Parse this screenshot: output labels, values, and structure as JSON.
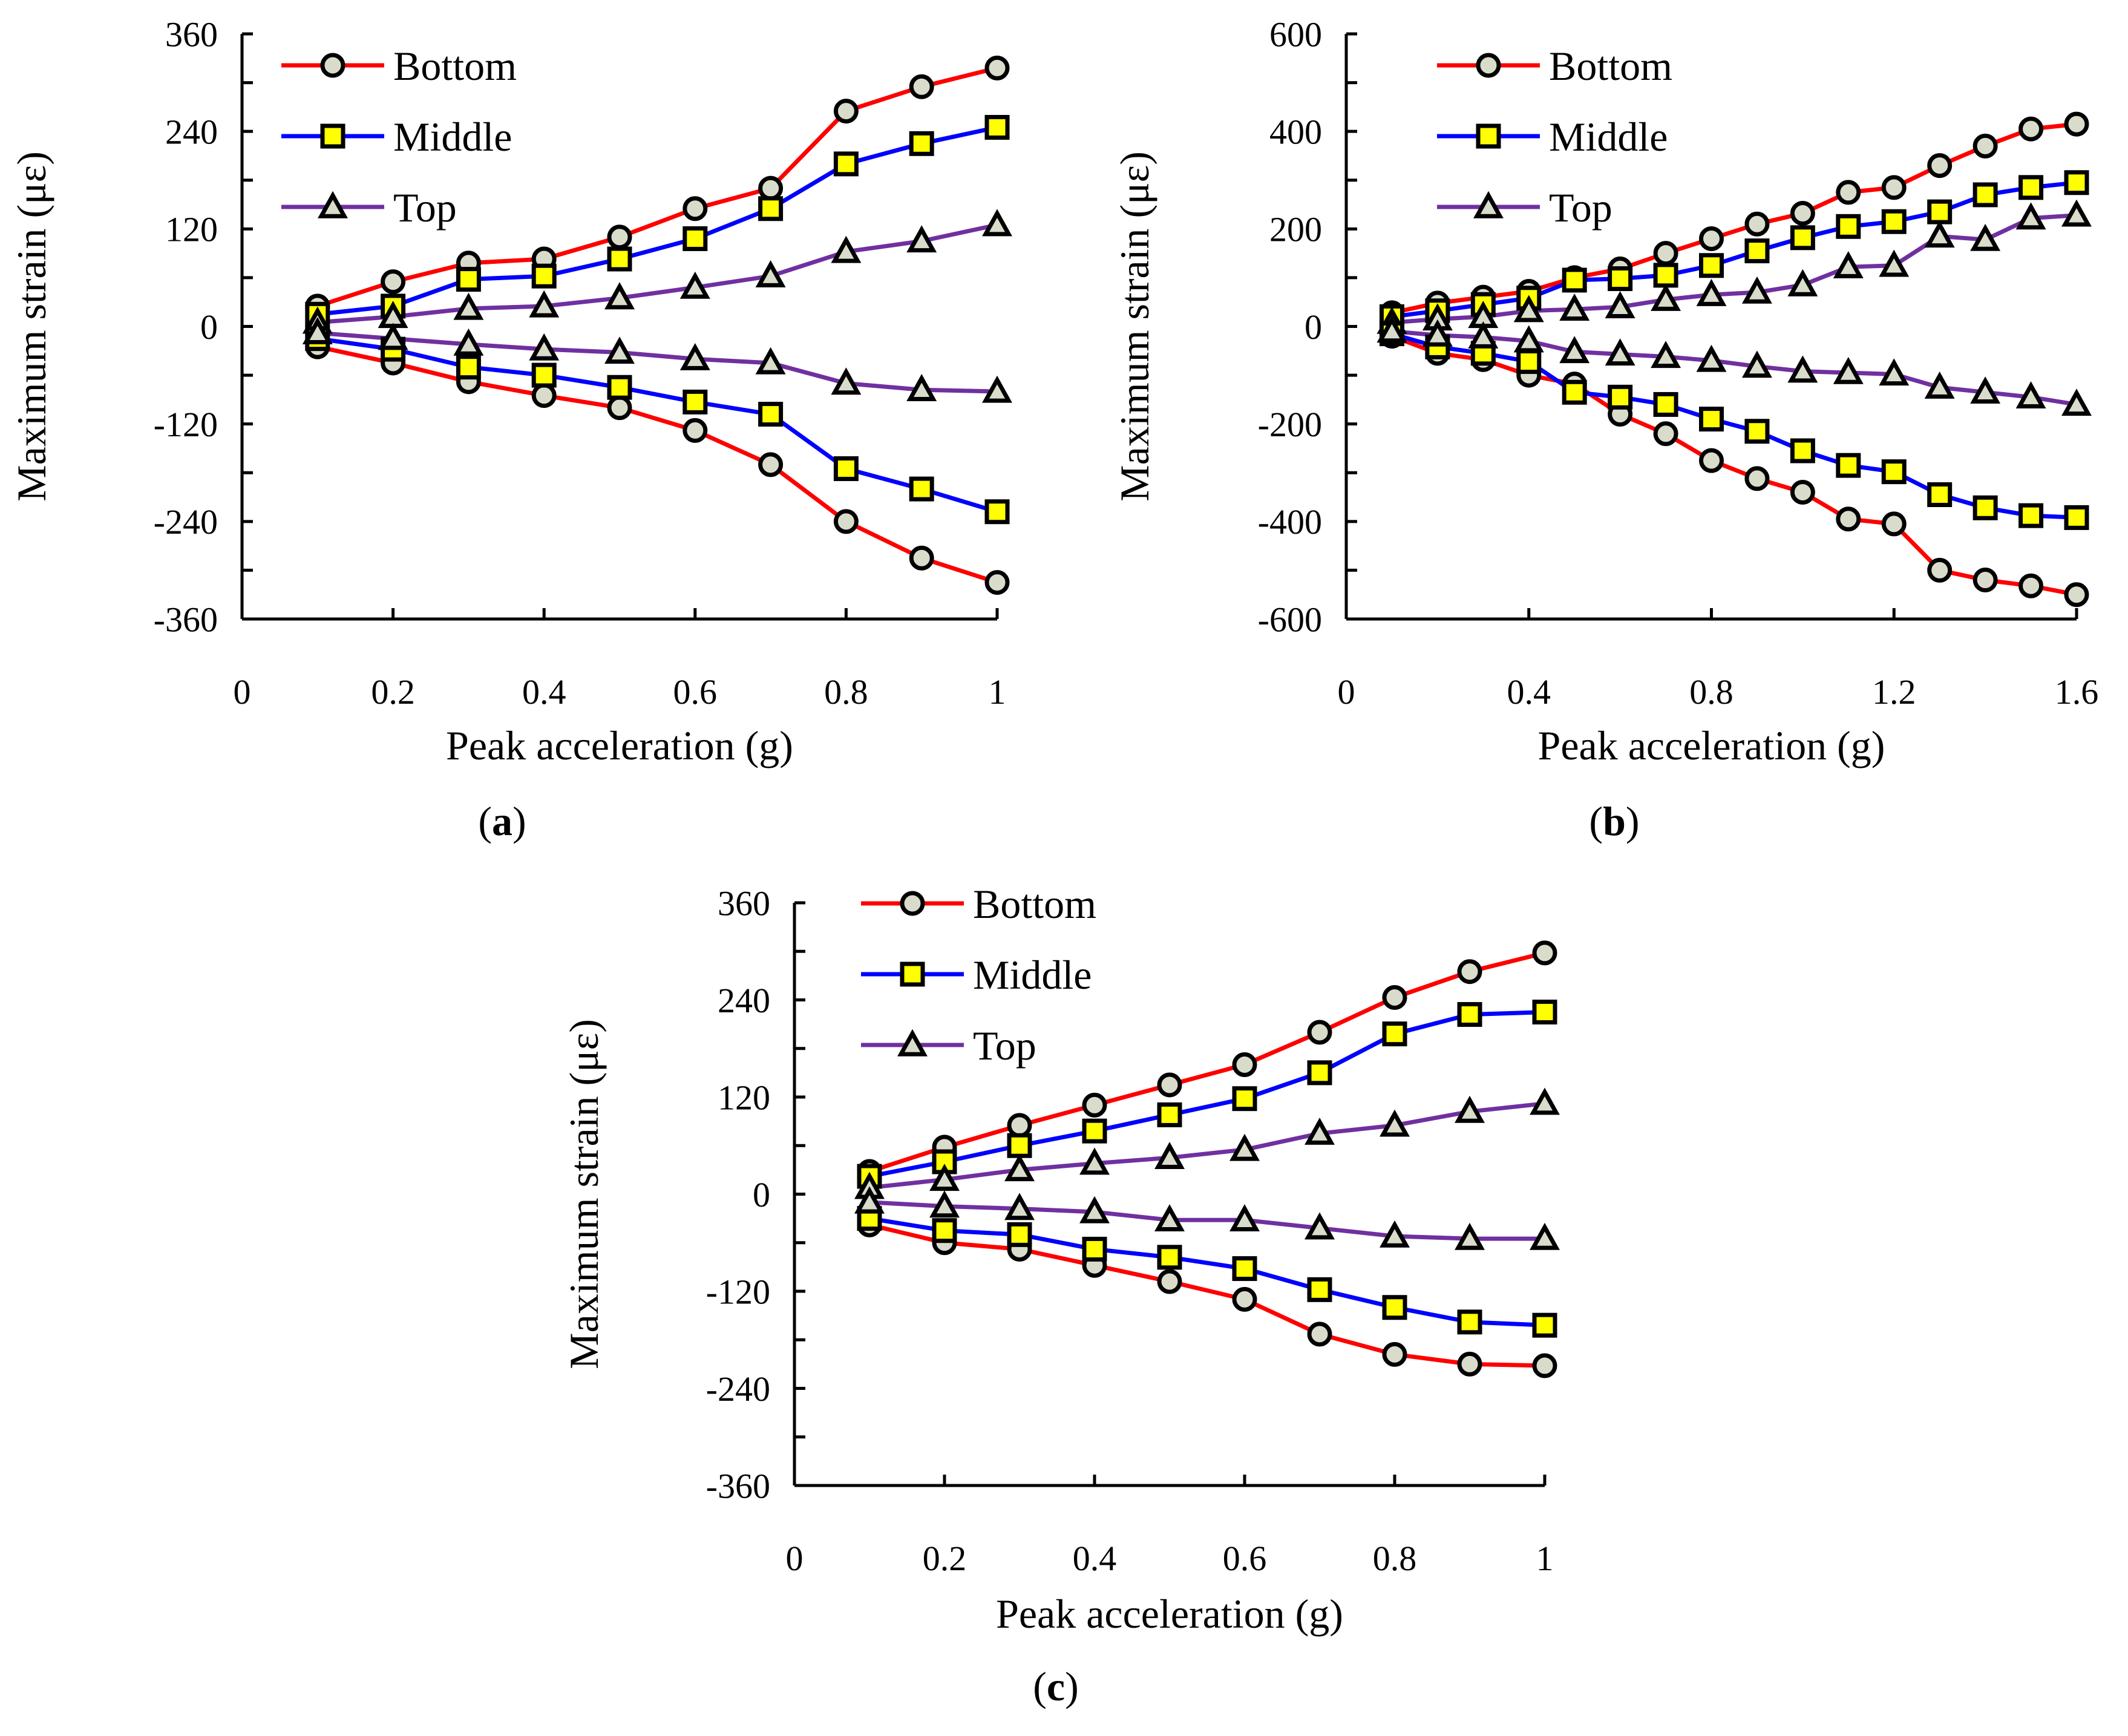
{
  "chart_data": [
    {
      "id": "a",
      "type": "line",
      "caption_letter": "a",
      "xlabel": "Peak acceleration (g)",
      "ylabel": "Maximum strain (με)",
      "xlim": [
        0,
        1
      ],
      "ylim": [
        -360,
        360
      ],
      "xticks": [
        0,
        0.2,
        0.4,
        0.6,
        0.8,
        1
      ],
      "xtick_labels": [
        "0",
        "0.2",
        "0.4",
        "0.6",
        "0.8",
        "1"
      ],
      "yticks": [
        -360,
        -240,
        -120,
        0,
        120,
        240,
        360
      ],
      "ytick_labels": [
        "-360",
        "-240",
        "-120",
        "0",
        "120",
        "240",
        "360"
      ],
      "legend": [
        "Bottom",
        "Middle",
        "Top"
      ],
      "x": [
        0.1,
        0.2,
        0.3,
        0.4,
        0.5,
        0.6,
        0.7,
        0.8,
        0.9,
        1.0
      ],
      "series": [
        {
          "name": "Bottom",
          "branch": "positive",
          "values": [
            25,
            55,
            78,
            83,
            110,
            145,
            170,
            265,
            295,
            318
          ]
        },
        {
          "name": "Middle",
          "branch": "positive",
          "values": [
            15,
            25,
            58,
            62,
            83,
            108,
            145,
            200,
            225,
            245
          ]
        },
        {
          "name": "Top",
          "branch": "positive",
          "values": [
            5,
            12,
            22,
            25,
            35,
            48,
            62,
            92,
            105,
            125
          ]
        },
        {
          "name": "Bottom",
          "branch": "negative",
          "values": [
            -25,
            -45,
            -68,
            -85,
            -100,
            -128,
            -170,
            -240,
            -285,
            -315
          ]
        },
        {
          "name": "Middle",
          "branch": "negative",
          "values": [
            -15,
            -28,
            -50,
            -60,
            -75,
            -93,
            -108,
            -175,
            -200,
            -228
          ]
        },
        {
          "name": "Top",
          "branch": "negative",
          "values": [
            -8,
            -15,
            -22,
            -28,
            -32,
            -40,
            -45,
            -70,
            -78,
            -80
          ]
        }
      ]
    },
    {
      "id": "b",
      "type": "line",
      "caption_letter": "b",
      "xlabel": "Peak acceleration (g)",
      "ylabel": "Maximum strain (με)",
      "xlim": [
        0,
        1.6
      ],
      "ylim": [
        -600,
        600
      ],
      "xticks": [
        0,
        0.4,
        0.8,
        1.2,
        1.6
      ],
      "xtick_labels": [
        "0",
        "0.4",
        "0.8",
        "1.2",
        "1.6"
      ],
      "yticks": [
        -600,
        -400,
        -200,
        0,
        200,
        400,
        600
      ],
      "ytick_labels": [
        "-600",
        "-400",
        "-200",
        "0",
        "200",
        "400",
        "600"
      ],
      "legend": [
        "Bottom",
        "Middle",
        "Top"
      ],
      "x": [
        0.1,
        0.2,
        0.3,
        0.4,
        0.5,
        0.6,
        0.7,
        0.8,
        0.9,
        1.0,
        1.1,
        1.2,
        1.3,
        1.4,
        1.5,
        1.6
      ],
      "series": [
        {
          "name": "Bottom",
          "branch": "positive",
          "values": [
            28,
            48,
            60,
            72,
            100,
            118,
            150,
            180,
            210,
            232,
            275,
            285,
            330,
            370,
            405,
            415
          ]
        },
        {
          "name": "Middle",
          "branch": "positive",
          "values": [
            20,
            32,
            45,
            58,
            95,
            98,
            105,
            125,
            155,
            182,
            205,
            215,
            235,
            270,
            285,
            295
          ]
        },
        {
          "name": "Top",
          "branch": "positive",
          "values": [
            8,
            15,
            20,
            32,
            35,
            40,
            55,
            65,
            70,
            85,
            122,
            125,
            185,
            178,
            222,
            228
          ]
        },
        {
          "name": "Bottom",
          "branch": "negative",
          "values": [
            -20,
            -55,
            -68,
            -100,
            -118,
            -180,
            -220,
            -275,
            -312,
            -340,
            -395,
            -405,
            -500,
            -520,
            -532,
            -550
          ]
        },
        {
          "name": "Middle",
          "branch": "negative",
          "values": [
            -15,
            -42,
            -55,
            -72,
            -135,
            -145,
            -160,
            -190,
            -215,
            -255,
            -285,
            -298,
            -345,
            -372,
            -388,
            -392
          ]
        },
        {
          "name": "Top",
          "branch": "negative",
          "values": [
            -10,
            -18,
            -22,
            -30,
            -52,
            -57,
            -62,
            -70,
            -82,
            -92,
            -95,
            -98,
            -125,
            -135,
            -145,
            -160
          ]
        }
      ]
    },
    {
      "id": "c",
      "type": "line",
      "caption_letter": "c",
      "xlabel": "Peak acceleration (g)",
      "ylabel": "Maximum strain (με)",
      "xlim": [
        0,
        1
      ],
      "ylim": [
        -360,
        360
      ],
      "xticks": [
        0,
        0.2,
        0.4,
        0.6,
        0.8,
        1
      ],
      "xtick_labels": [
        "0",
        "0.2",
        "0.4",
        "0.6",
        "0.8",
        "1"
      ],
      "yticks": [
        -360,
        -240,
        -120,
        0,
        120,
        240,
        360
      ],
      "ytick_labels": [
        "-360",
        "-240",
        "-120",
        "0",
        "120",
        "240",
        "360"
      ],
      "legend": [
        "Bottom",
        "Middle",
        "Top"
      ],
      "x": [
        0.1,
        0.2,
        0.3,
        0.4,
        0.5,
        0.6,
        0.7,
        0.8,
        0.9,
        1.0
      ],
      "series": [
        {
          "name": "Bottom",
          "branch": "positive",
          "values": [
            28,
            58,
            85,
            110,
            135,
            160,
            200,
            243,
            275,
            298
          ]
        },
        {
          "name": "Middle",
          "branch": "positive",
          "values": [
            22,
            40,
            60,
            78,
            98,
            118,
            150,
            198,
            222,
            225
          ]
        },
        {
          "name": "Top",
          "branch": "positive",
          "values": [
            8,
            18,
            30,
            38,
            45,
            55,
            75,
            85,
            102,
            112
          ]
        },
        {
          "name": "Bottom",
          "branch": "negative",
          "values": [
            -38,
            -60,
            -68,
            -88,
            -108,
            -130,
            -173,
            -198,
            -210,
            -212
          ]
        },
        {
          "name": "Middle",
          "branch": "negative",
          "values": [
            -30,
            -45,
            -50,
            -68,
            -78,
            -92,
            -118,
            -140,
            -158,
            -162
          ]
        },
        {
          "name": "Top",
          "branch": "negative",
          "values": [
            -10,
            -15,
            -18,
            -22,
            -32,
            -32,
            -42,
            -52,
            -55,
            -55
          ]
        }
      ]
    }
  ],
  "series_style": {
    "Bottom": {
      "color": "#ff0000",
      "marker": "circle",
      "marker_fill": "#d9dccb"
    },
    "Middle": {
      "color": "#0000ff",
      "marker": "square",
      "marker_fill": "#ffff00"
    },
    "Top": {
      "color": "#7030a0",
      "marker": "triangle",
      "marker_fill": "#d9dccb"
    }
  }
}
